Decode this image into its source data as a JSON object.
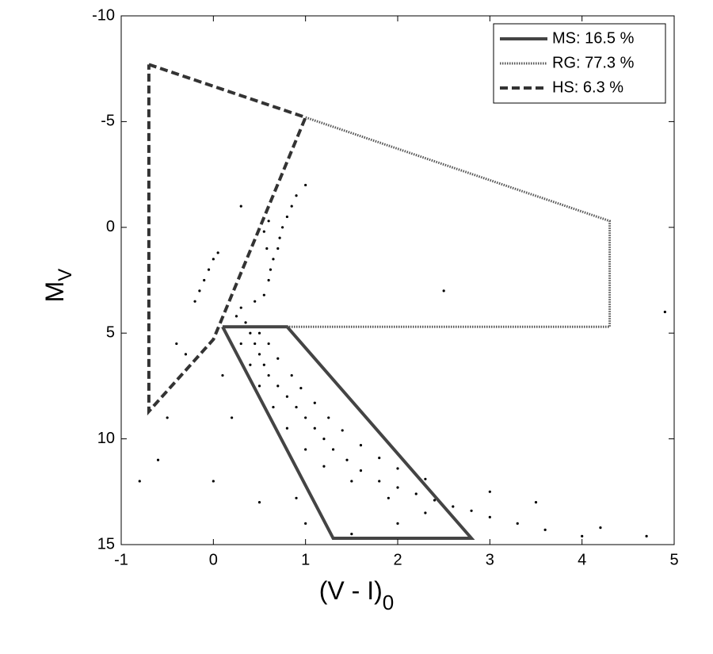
{
  "chart_data": {
    "type": "scatter",
    "x_label": "(V - I)",
    "x_label_sub": "0",
    "y_label": "M",
    "y_label_sub": "V",
    "xlim": [
      -1,
      5
    ],
    "xticks": [
      -1,
      0,
      1,
      2,
      3,
      4,
      5
    ],
    "ylim": [
      -10,
      15
    ],
    "yticks": [
      -10,
      -5,
      0,
      5,
      10,
      15
    ],
    "y_inverted": true,
    "legend": "upper right",
    "points": {
      "color": "#000000",
      "x": [
        0.35,
        0.4,
        0.45,
        0.5,
        0.55,
        0.6,
        0.7,
        0.8,
        0.9,
        1.0,
        1.1,
        1.2,
        1.3,
        1.45,
        1.6,
        1.8,
        2.0,
        2.2,
        2.4,
        2.6,
        2.8,
        3.0,
        3.3,
        3.6,
        4.0,
        0.5,
        0.6,
        0.7,
        0.85,
        0.95,
        1.1,
        1.25,
        1.4,
        1.6,
        1.8,
        2.0,
        2.3,
        0.3,
        0.4,
        0.5,
        0.65,
        0.8,
        1.0,
        1.2,
        1.5,
        1.9,
        2.3,
        0.25,
        0.3,
        0.45,
        0.55,
        0.6,
        0.62,
        0.65,
        0.7,
        0.72,
        0.75,
        0.8,
        0.85,
        0.9,
        1.0,
        0.58,
        0.55,
        0.6,
        -0.1,
        -0.15,
        -0.05,
        0,
        -0.2,
        0.05,
        -0.3,
        -0.5,
        -0.8,
        0.2,
        0,
        0.5,
        1,
        3.5,
        4.2,
        4.7,
        -0.6,
        0.3,
        2.5,
        4.9,
        -0.4,
        1.5,
        2,
        3,
        0.9,
        0.1
      ],
      "y": [
        4.5,
        5,
        5.5,
        6,
        6.5,
        7,
        7.5,
        8,
        8.5,
        9,
        9.5,
        10,
        10.5,
        11,
        11.5,
        12,
        12.3,
        12.6,
        12.9,
        13.2,
        13.4,
        13.7,
        14,
        14.3,
        14.6,
        5,
        5.5,
        6.2,
        7,
        7.6,
        8.3,
        9,
        9.6,
        10.3,
        10.9,
        11.4,
        11.9,
        5.5,
        6.5,
        7.5,
        8.5,
        9.5,
        10.5,
        11.3,
        12,
        12.8,
        13.5,
        4.2,
        3.8,
        3.5,
        3.2,
        2.5,
        2,
        1.5,
        1,
        0.5,
        0,
        -0.5,
        -1,
        -1.5,
        -2,
        1,
        0.2,
        -0.3,
        2.5,
        3,
        2,
        1.5,
        3.5,
        1.2,
        6,
        9,
        12,
        9,
        12,
        13,
        14,
        13,
        14.2,
        14.6,
        11,
        -1,
        3,
        4,
        5.5,
        14.5,
        14,
        12.5,
        12.8,
        7
      ]
    },
    "series": [
      {
        "name": "MS: 16.5 %",
        "color": "#444444",
        "style": "solid",
        "x": [
          0.1,
          0.8,
          2.8,
          1.3,
          0.1
        ],
        "y": [
          4.7,
          4.7,
          14.7,
          14.7,
          4.7
        ]
      },
      {
        "name": "RG: 77.3 %",
        "color": "#555555",
        "style": "dotted",
        "x": [
          1,
          4.3,
          4.3,
          0.8
        ],
        "y": [
          -5.2,
          -0.3,
          4.7,
          4.7
        ]
      },
      {
        "name": "HS: 6.3 %",
        "color": "#333333",
        "style": "dashed",
        "x": [
          -0.7,
          1,
          0,
          -0.7,
          -0.7
        ],
        "y": [
          -7.7,
          -5.2,
          5.3,
          8.7,
          -7.7
        ]
      }
    ]
  }
}
